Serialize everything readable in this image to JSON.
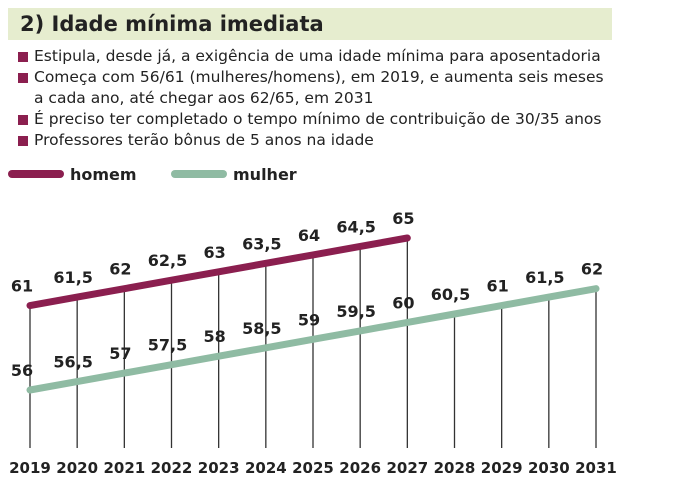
{
  "chart_data": {
    "type": "line",
    "title": "2) Idade mínima imediata",
    "bullets": [
      "Estipula, desde já, a exigência de uma idade mínima para aposentadoria",
      "Começa com 56/61 (mulheres/homens), em 2019, e aumenta seis meses a cada ano, até chegar aos 62/65, em 2031",
      "É preciso ter completado o tempo mínimo de contribuição de 30/35 anos",
      "Professores terão bônus de 5 anos na idade"
    ],
    "categories": [
      "2019",
      "2020",
      "2021",
      "2022",
      "2023",
      "2024",
      "2025",
      "2026",
      "2027",
      "2028",
      "2029",
      "2030",
      "2031"
    ],
    "series": [
      {
        "name": "homem",
        "color": "#8b1f4f",
        "values": [
          61,
          61.5,
          62,
          62.5,
          63,
          63.5,
          64,
          64.5,
          65,
          null,
          null,
          null,
          null
        ],
        "value_labels": [
          "61",
          "61,5",
          "62",
          "62,5",
          "63",
          "63,5",
          "64",
          "64,5",
          "65",
          null,
          null,
          null,
          null
        ]
      },
      {
        "name": "mulher",
        "color": "#8fbba3",
        "values": [
          56,
          56.5,
          57,
          57.5,
          58,
          58.5,
          59,
          59.5,
          60,
          60.5,
          61,
          61.5,
          62
        ],
        "value_labels": [
          "56",
          "56,5",
          "57",
          "57,5",
          "58",
          "58,5",
          "59",
          "59,5",
          "60",
          "60,5",
          "61",
          "61,5",
          "62"
        ]
      }
    ]
  }
}
